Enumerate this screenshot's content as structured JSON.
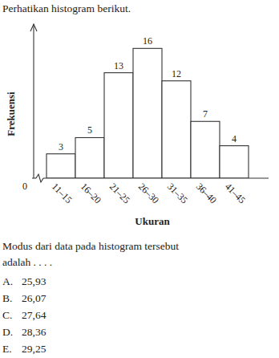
{
  "header": "Perhatikan histogram berikut.",
  "chart_data": {
    "type": "histogram",
    "categories": [
      "11–15",
      "16–20",
      "21–25",
      "26–30",
      "31–35",
      "36–40",
      "41–45"
    ],
    "values": [
      3,
      5,
      13,
      16,
      12,
      7,
      4
    ],
    "x_label": "Ukuran",
    "y_label": "Frekuensi",
    "ylim": [
      0,
      19
    ],
    "yticks": [
      0
    ],
    "grid": false,
    "data_labels": true,
    "color": "#ffffff"
  },
  "question": [
    "Modus dari data pada histogram tersebut",
    "adalah . . . ."
  ],
  "options": [
    {
      "letter": "A.",
      "text": "25,93"
    },
    {
      "letter": "B.",
      "text": "26,07"
    },
    {
      "letter": "C.",
      "text": "27,64"
    },
    {
      "letter": "D.",
      "text": "28,36"
    },
    {
      "letter": "E.",
      "text": "29,25"
    }
  ]
}
